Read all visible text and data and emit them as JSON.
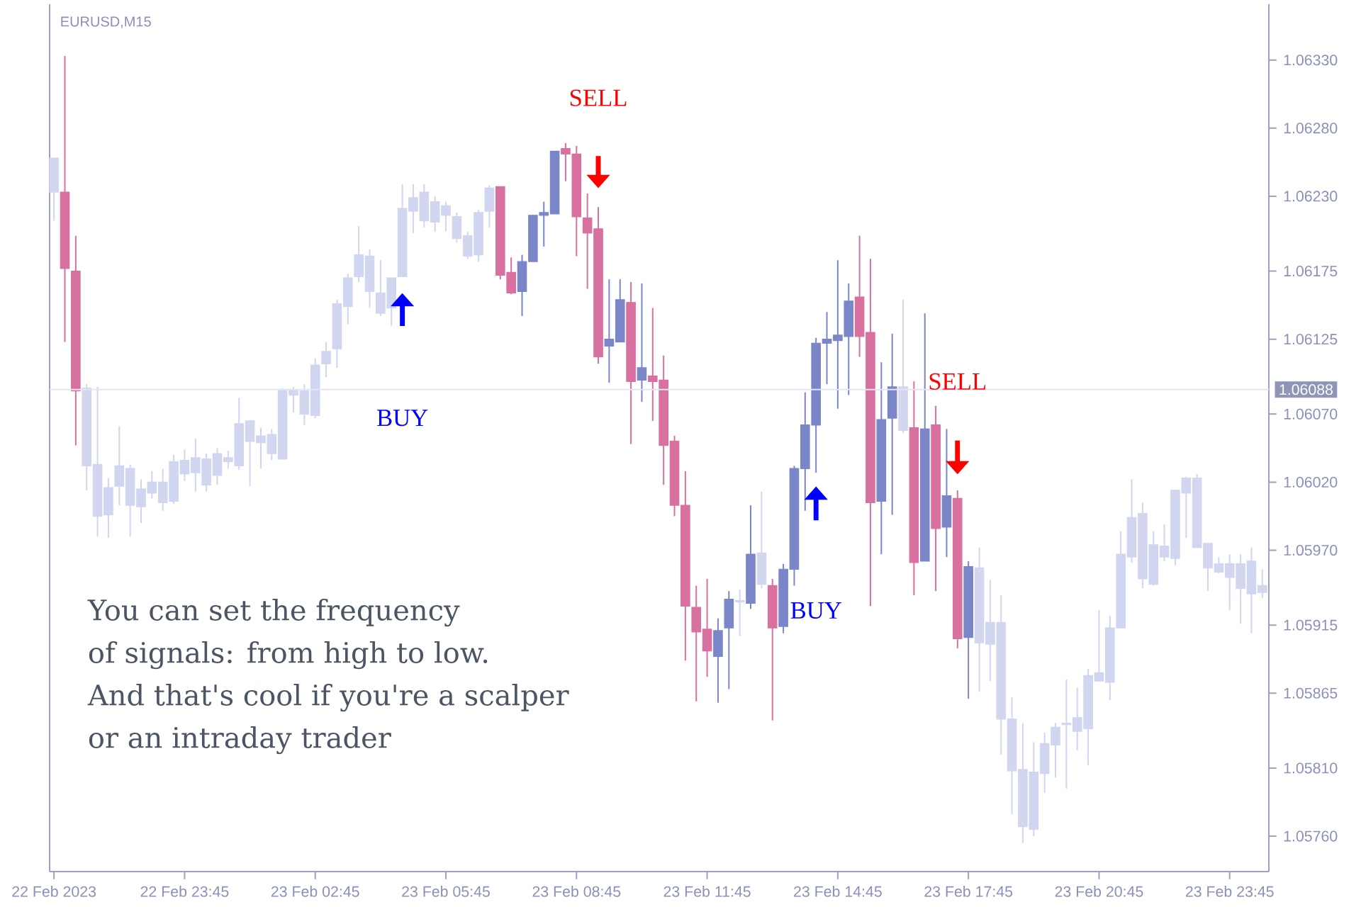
{
  "chart_data": {
    "type": "candlestick",
    "title": "EURUSD,M15",
    "ylim": [
      1.05734,
      1.06371
    ],
    "yticks": [
      {
        "value": 1.0633,
        "label": "1.06330"
      },
      {
        "value": 1.0628,
        "label": "1.06280"
      },
      {
        "value": 1.0623,
        "label": "1.06230"
      },
      1.06175,
      1.06125,
      {
        "value": 1.0607,
        "label": "1.06070"
      },
      {
        "value": 1.0602,
        "label": "1.06020"
      },
      {
        "value": 1.0597,
        "label": "1.05970"
      },
      1.05915,
      1.05865,
      {
        "value": 1.0581,
        "label": "1.05810"
      },
      {
        "value": 1.0576,
        "label": "1.05760"
      }
    ],
    "ref_lines": [
      {
        "axis": "y",
        "value": 1.06088,
        "label": "1.06088",
        "color": "#e3e5f5"
      }
    ],
    "annotations": [
      "SELL",
      "BUY",
      "BUY",
      "SELL",
      "You can set the frequency",
      "of signals: from high to low.",
      "And that's cool if you're a scalper",
      "or an intraday trader"
    ],
    "categories": [
      "22 Feb 2023",
      null,
      null,
      null,
      null,
      null,
      null,
      null,
      null,
      null,
      null,
      null,
      "22 Feb 23:45",
      null,
      null,
      null,
      null,
      null,
      null,
      null,
      null,
      null,
      null,
      null,
      "23 Feb 02:45",
      null,
      null,
      null,
      null,
      null,
      null,
      null,
      null,
      null,
      null,
      null,
      "23 Feb 05:45",
      null,
      null,
      null,
      null,
      null,
      null,
      null,
      null,
      null,
      null,
      null,
      "23 Feb 08:45",
      null,
      null,
      null,
      null,
      null,
      null,
      null,
      null,
      null,
      null,
      null,
      "23 Feb 11:45",
      null,
      null,
      null,
      null,
      null,
      null,
      null,
      null,
      null,
      null,
      null,
      "23 Feb 14:45",
      null,
      null,
      null,
      null,
      null,
      null,
      null,
      null,
      null,
      null,
      null,
      "23 Feb 17:45",
      null,
      null,
      null,
      null,
      null,
      null,
      null,
      null,
      null,
      null,
      null,
      "23 Feb 20:45",
      null,
      null,
      null,
      null,
      null,
      null,
      null,
      null,
      null,
      null,
      null,
      "23 Feb 23:45",
      null,
      null,
      null
    ],
    "colors": [
      "#d2d6ee",
      "#d8719f",
      "#d8719f",
      "#d2d6ee",
      "#d2d6ee",
      "#d0d5f0",
      "#d0d5f0",
      "#d2d6ee",
      "#d0d5f0",
      "#d0d5f0",
      "#d2d6ee",
      "#d0d5f0",
      "#d0d5f0",
      "#d0d5f0",
      "#d2d6ee",
      "#d0d5f0",
      "#d2d6ee",
      "#d0d5f0",
      "#d2d6ee",
      "#d0d5f0",
      "#d2d6ee",
      "#d0d5f0",
      "#d2d6ee",
      "#d2d6ee",
      "#d0d5f0",
      "#d0d5f0",
      "#d0d5f0",
      "#d0d5f0",
      "#d0d5f0",
      "#d2d6ee",
      "#d2d6ee",
      "#d0d5f0",
      "#d0d5f0",
      "#d0d5f0",
      "#d2d6ee",
      "#d0d5f0",
      "#d2d6ee",
      "#d2d6ee",
      "#d2d6ee",
      "#d0d5f0",
      "#d0d5f0",
      "#d8719f",
      "#d8719f",
      "#7b86c9",
      "#7b86c9",
      "#7b86c9",
      "#7b86c9",
      "#d8719f",
      "#d8719f",
      "#d8719f",
      "#d8719f",
      "#7b86c9",
      "#7b86c9",
      "#d8719f",
      "#7b86c9",
      "#d8719f",
      "#d8719f",
      "#d8719f",
      "#d8719f",
      "#d8719f",
      "#d8719f",
      "#7b86c9",
      "#7b86c9",
      "#d2d6ee",
      "#7b86c9",
      "#d2d6ee",
      "#d8719f",
      "#7b86c9",
      "#7b86c9",
      "#7b86c9",
      "#7b86c9",
      "#7b86c9",
      "#7b86c9",
      "#7b86c9",
      "#d8719f",
      "#d8719f",
      "#7b86c9",
      "#7b86c9",
      "#d2d6ee",
      "#d8719f",
      "#7b86c9",
      "#d8719f",
      "#7b86c9",
      "#d8719f",
      "#7b86c9",
      "#d2d6ee",
      "#d0d5f0",
      "#d2d6ee",
      "#d2d6ee",
      "#d2d6ee",
      "#d0d5f0",
      "#d0d5f0",
      "#d0d5f0",
      "#d0d5f0",
      "#d0d5f0",
      "#d0d5f0",
      "#d0d5f0",
      "#d0d5f0",
      "#d0d5f0",
      "#d0d5f0",
      "#d2d6ee",
      "#d0d5f0",
      "#d2d6ee",
      "#d0d5f0",
      "#d0d5f0",
      "#d2d6ee",
      "#d2d6ee",
      "#d2d6ee",
      "#d2d6ee",
      "#d2d6ee",
      "#d0d5f0",
      "#d2d6ee"
    ],
    "ohlc": [
      [
        1.06258,
        1.06258,
        1.06212,
        1.06233
      ],
      [
        1.06233,
        1.06333,
        1.06123,
        1.06177
      ],
      [
        1.06175,
        1.06201,
        1.06047,
        1.06087
      ],
      [
        1.06089,
        1.06092,
        1.06014,
        1.06032
      ],
      [
        1.06033,
        1.0609,
        1.0598,
        1.05995
      ],
      [
        1.05996,
        1.06023,
        1.05979,
        1.06016
      ],
      [
        1.06017,
        1.06061,
        1.06003,
        1.06032
      ],
      [
        1.0603,
        1.06033,
        1.0598,
        1.06003
      ],
      [
        1.06002,
        1.06022,
        1.0599,
        1.06015
      ],
      [
        1.06012,
        1.06028,
        1.06008,
        1.0602
      ],
      [
        1.0602,
        1.0603,
        1.05999,
        1.06005
      ],
      [
        1.06006,
        1.0604,
        1.06004,
        1.06035
      ],
      [
        1.06026,
        1.06044,
        1.06021,
        1.06036
      ],
      [
        1.06027,
        1.06052,
        1.06013,
        1.06038
      ],
      [
        1.06037,
        1.06041,
        1.06013,
        1.06018
      ],
      [
        1.06025,
        1.06045,
        1.06018,
        1.06041
      ],
      [
        1.06038,
        1.06043,
        1.0603,
        1.06035
      ],
      [
        1.06032,
        1.06082,
        1.06029,
        1.06063
      ],
      [
        1.06065,
        1.06065,
        1.06017,
        1.0605
      ],
      [
        1.06049,
        1.0606,
        1.0603,
        1.06054
      ],
      [
        1.06055,
        1.06059,
        1.06036,
        1.06041
      ],
      [
        1.06037,
        1.06089,
        1.06037,
        1.06088
      ],
      [
        1.06088,
        1.0609,
        1.06071,
        1.06084
      ],
      [
        1.06087,
        1.06092,
        1.06062,
        1.0607
      ],
      [
        1.06069,
        1.06111,
        1.06067,
        1.06106
      ],
      [
        1.06107,
        1.06123,
        1.06097,
        1.06116
      ],
      [
        1.06118,
        1.06154,
        1.06104,
        1.06151
      ],
      [
        1.06149,
        1.06173,
        1.06136,
        1.0617
      ],
      [
        1.06171,
        1.06208,
        1.06167,
        1.06187
      ],
      [
        1.06186,
        1.06191,
        1.06148,
        1.0616
      ],
      [
        1.06159,
        1.06183,
        1.06142,
        1.06144
      ],
      [
        1.06148,
        1.0617,
        1.06135,
        1.0617
      ],
      [
        1.06171,
        1.06239,
        1.06171,
        1.06221
      ],
      [
        1.06219,
        1.06239,
        1.06203,
        1.06229
      ],
      [
        1.06233,
        1.06239,
        1.06207,
        1.06212
      ],
      [
        1.06211,
        1.0623,
        1.06204,
        1.06226
      ],
      [
        1.06223,
        1.06226,
        1.06204,
        1.06216
      ],
      [
        1.06215,
        1.06218,
        1.06196,
        1.06199
      ],
      [
        1.06201,
        1.06204,
        1.06184,
        1.06186
      ],
      [
        1.06187,
        1.0622,
        1.06182,
        1.06218
      ],
      [
        1.06219,
        1.06238,
        1.06207,
        1.06236
      ],
      [
        1.06237,
        1.06237,
        1.06169,
        1.06172
      ],
      [
        1.06174,
        1.06185,
        1.06158,
        1.06159
      ],
      [
        1.0616,
        1.06187,
        1.06142,
        1.06182
      ],
      [
        1.06182,
        1.06216,
        1.06182,
        1.06216
      ],
      [
        1.06216,
        1.06226,
        1.06193,
        1.06218
      ],
      [
        1.06217,
        1.06263,
        1.06217,
        1.06263
      ],
      [
        1.06265,
        1.06269,
        1.06241,
        1.06261
      ],
      [
        1.06261,
        1.06267,
        1.06186,
        1.06215
      ],
      [
        1.06214,
        1.06232,
        1.06162,
        1.06203
      ],
      [
        1.06206,
        1.06222,
        1.06107,
        1.06112
      ],
      [
        1.0612,
        1.06169,
        1.06093,
        1.06125
      ],
      [
        1.06123,
        1.06169,
        1.06123,
        1.06154
      ],
      [
        1.06152,
        1.06167,
        1.06048,
        1.06094
      ],
      [
        1.06095,
        1.06166,
        1.06079,
        1.06104
      ],
      [
        1.06098,
        1.06148,
        1.06065,
        1.06094
      ],
      [
        1.06095,
        1.06113,
        1.06018,
        1.06047
      ],
      [
        1.0605,
        1.06054,
        1.05995,
        1.06003
      ],
      [
        1.06003,
        1.06028,
        1.05889,
        1.05929
      ],
      [
        1.05928,
        1.05944,
        1.05859,
        1.0591
      ],
      [
        1.05912,
        1.05949,
        1.05877,
        1.05896
      ],
      [
        1.05892,
        1.0592,
        1.05858,
        1.05911
      ],
      [
        1.05913,
        1.0594,
        1.05868,
        1.05934
      ],
      [
        1.05933,
        1.05941,
        1.05907,
        1.05932
      ],
      [
        1.05931,
        1.06003,
        1.05927,
        1.05967
      ],
      [
        1.05968,
        1.06013,
        1.05942,
        1.05945
      ],
      [
        1.05944,
        1.05949,
        1.05845,
        1.05913
      ],
      [
        1.05914,
        1.0596,
        1.05909,
        1.05956
      ],
      [
        1.05956,
        1.06032,
        1.05944,
        1.0603
      ],
      [
        1.0603,
        1.06086,
        1.05999,
        1.06062
      ],
      [
        1.06062,
        1.06126,
        1.06027,
        1.06122
      ],
      [
        1.06122,
        1.06145,
        1.06092,
        1.06125
      ],
      [
        1.06124,
        1.06183,
        1.06074,
        1.06128
      ],
      [
        1.06127,
        1.06166,
        1.06084,
        1.06153
      ],
      [
        1.06156,
        1.06201,
        1.06112,
        1.06127
      ],
      [
        1.0613,
        1.06184,
        1.05929,
        1.06005
      ],
      [
        1.06006,
        1.06108,
        1.05967,
        1.06066
      ],
      [
        1.06067,
        1.06129,
        1.05996,
        1.0609
      ],
      [
        1.0609,
        1.06154,
        1.06056,
        1.06058
      ],
      [
        1.0606,
        1.06094,
        1.05937,
        1.05961
      ],
      [
        1.05962,
        1.06144,
        1.05962,
        1.06059
      ],
      [
        1.06062,
        1.06076,
        1.0594,
        1.05986
      ],
      [
        1.05987,
        1.06059,
        1.05965,
        1.0601
      ],
      [
        1.06008,
        1.06014,
        1.05898,
        1.05905
      ],
      [
        1.05906,
        1.05962,
        1.05861,
        1.05958
      ],
      [
        1.05957,
        1.05972,
        1.05866,
        1.05902
      ],
      [
        1.05901,
        1.05948,
        1.05874,
        1.05917
      ],
      [
        1.05917,
        1.05937,
        1.0582,
        1.05846
      ],
      [
        1.05846,
        1.05862,
        1.05776,
        1.05808
      ],
      [
        1.05809,
        1.05843,
        1.05755,
        1.05767
      ],
      [
        1.05765,
        1.05829,
        1.0576,
        1.05807
      ],
      [
        1.05806,
        1.05836,
        1.05792,
        1.05828
      ],
      [
        1.05827,
        1.05843,
        1.05803,
        1.0584
      ],
      [
        1.05842,
        1.05875,
        1.05795,
        1.05843
      ],
      [
        1.05837,
        1.05869,
        1.05823,
        1.05847
      ],
      [
        1.05839,
        1.05883,
        1.05812,
        1.05878
      ],
      [
        1.05874,
        1.05926,
        1.05874,
        1.0588
      ],
      [
        1.05873,
        1.05922,
        1.0586,
        1.05913
      ],
      [
        1.05913,
        1.05984,
        1.05913,
        1.05967
      ],
      [
        1.05965,
        1.06022,
        1.05961,
        1.05994
      ],
      [
        1.05997,
        1.06005,
        1.05942,
        1.05949
      ],
      [
        1.05945,
        1.05984,
        1.05944,
        1.05974
      ],
      [
        1.05973,
        1.05989,
        1.05962,
        1.05965
      ],
      [
        1.05964,
        1.06014,
        1.05959,
        1.06014
      ],
      [
        1.06012,
        1.06024,
        1.05979,
        1.06023
      ],
      [
        1.06023,
        1.06026,
        1.05972,
        1.05972
      ],
      [
        1.05975,
        1.05975,
        1.0594,
        1.05957
      ],
      [
        1.0596,
        1.05965,
        1.05953,
        1.05954
      ],
      [
        1.0596,
        1.05967,
        1.05926,
        1.0595
      ],
      [
        1.0596,
        1.05967,
        1.05916,
        1.05942
      ],
      [
        1.05938,
        1.05972,
        1.05909,
        1.05962
      ],
      [
        1.05944,
        1.05956,
        1.05935,
        1.05939
      ]
    ]
  }
}
